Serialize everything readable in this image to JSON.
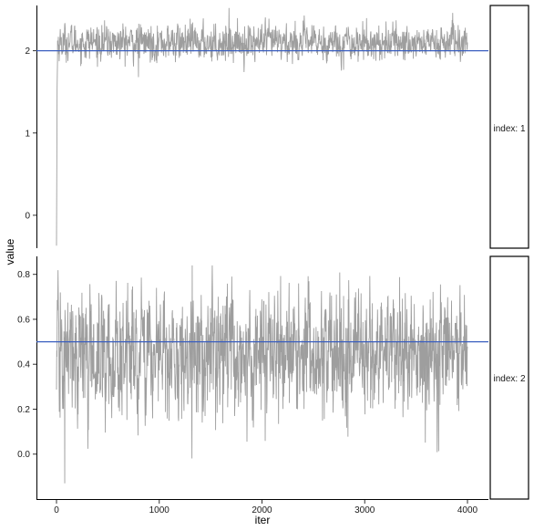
{
  "chart_data": {
    "type": "line",
    "title": "",
    "xlabel": "iter",
    "ylabel": "value",
    "x_range": [
      0,
      4000
    ],
    "x_ticks": [
      0,
      1000,
      2000,
      3000,
      4000
    ],
    "series_color": "#9e9e9e",
    "reference_color": "#3b5fc0",
    "grid": false,
    "panels": [
      {
        "strip": "index: 1",
        "ylim": [
          -0.4,
          2.55
        ],
        "y_ticks": [
          0,
          1,
          2
        ],
        "reference": 2.0,
        "trace": {
          "burn_in": [
            {
              "iter": 0,
              "value": -0.37
            },
            {
              "iter": 3,
              "value": 0.6
            },
            {
              "iter": 6,
              "value": 1.55
            },
            {
              "iter": 10,
              "value": 1.9
            }
          ],
          "start": 10,
          "end": 4000,
          "points": 1500,
          "mean": 2.1,
          "sd": 0.11,
          "min": 1.68,
          "max": 2.52
        }
      },
      {
        "strip": "index: 2",
        "ylim": [
          -0.2,
          0.88
        ],
        "y_ticks": [
          0.0,
          0.2,
          0.4,
          0.6,
          0.8
        ],
        "reference": 0.5,
        "trace": {
          "burn_in": [],
          "start": 0,
          "end": 4000,
          "points": 1600,
          "mean": 0.44,
          "sd": 0.14,
          "min": -0.13,
          "max": 0.84
        }
      }
    ]
  }
}
